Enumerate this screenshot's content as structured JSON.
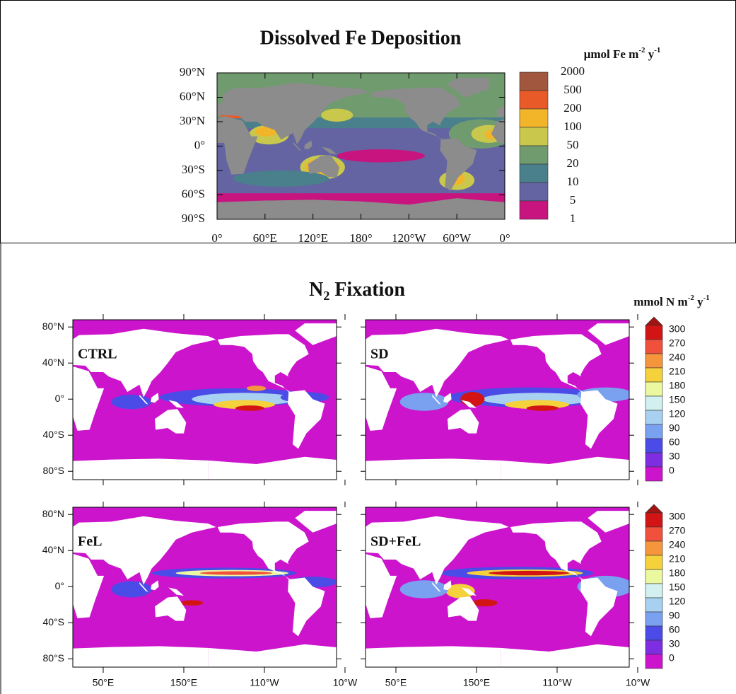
{
  "top": {
    "title": "Dissolved Fe Deposition",
    "units": {
      "text": "µmol Fe m",
      "sup1": "-2",
      "mid": " y",
      "sup2": "-1"
    },
    "yticks": [
      "90°N",
      "60°N",
      "30°N",
      "0°",
      "30°S",
      "60°S",
      "90°S"
    ],
    "xticks": [
      "0°",
      "60°E",
      "120°E",
      "180°",
      "120°W",
      "60°W",
      "0°"
    ],
    "colorbar": {
      "labels": [
        2000,
        500,
        200,
        100,
        50,
        20,
        10,
        5,
        1
      ],
      "colors": [
        "#a0573e",
        "#e85a28",
        "#f2b52a",
        "#c9c84c",
        "#6f9b6f",
        "#4a7f8c",
        "#6464a2",
        "#c8147f"
      ]
    }
  },
  "bottom": {
    "title": {
      "text": "N",
      "sub": "2",
      "rest": " Fixation"
    },
    "units": {
      "text": "mmol N m",
      "sup1": "-2",
      "mid": " y",
      "sup2": "-1"
    },
    "panels": [
      "CTRL",
      "SD",
      "FeL",
      "SD+FeL"
    ],
    "yticks": [
      "80°N",
      "40°N",
      "0°",
      "40°S",
      "80°S"
    ],
    "xticks": [
      "50°E",
      "150°E",
      "110°W",
      "10°W"
    ],
    "colorbar": {
      "labels": [
        300,
        270,
        240,
        210,
        180,
        150,
        120,
        90,
        60,
        30,
        0
      ],
      "colors": [
        "#d21414",
        "#f0503c",
        "#f5963c",
        "#f5d23c",
        "#ecf8a0",
        "#d2f0f0",
        "#a8d0f0",
        "#7aa0f0",
        "#4b4be8",
        "#7d2ee0",
        "#cc14cc"
      ],
      "extend_color": "#a01414"
    }
  }
}
